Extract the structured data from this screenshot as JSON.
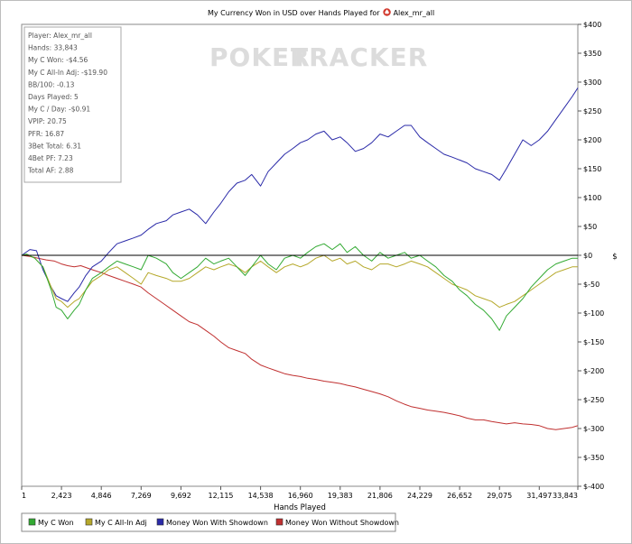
{
  "chart_data": {
    "type": "line",
    "title": "My Currency Won in USD over Hands Played for",
    "player": "Alex_mr_all",
    "xlabel": "Hands Played",
    "ylabel": "$",
    "watermark": {
      "left": "POKER",
      "right": "TRACKER"
    },
    "xlim": [
      1,
      33843
    ],
    "ylim": [
      -400,
      400
    ],
    "x_ticks": [
      1,
      2423,
      4846,
      7269,
      9692,
      12115,
      14538,
      16960,
      19383,
      21806,
      24229,
      26652,
      29075,
      31497,
      33843
    ],
    "x_tick_labels": [
      "1",
      "2,423",
      "4,846",
      "7,269",
      "9,692",
      "12,115",
      "14,538",
      "16,960",
      "19,383",
      "21,806",
      "24,229",
      "26,652",
      "29,075",
      "31,497",
      "33,843"
    ],
    "y_ticks": [
      400,
      350,
      300,
      250,
      200,
      150,
      100,
      50,
      0,
      -50,
      -100,
      -150,
      -200,
      -250,
      -300,
      -350,
      -400
    ],
    "y_tick_labels": [
      "$400",
      "$350",
      "$300",
      "$250",
      "$200",
      "$150",
      "$100",
      "$50",
      "$0",
      "$-50",
      "$-100",
      "$-150",
      "$-200",
      "$-250",
      "$-300",
      "$-350",
      "$-400"
    ],
    "stats": [
      "Player: Alex_mr_all",
      "Hands: 33,843",
      "My C Won: -$4.56",
      "My C All-In Adj: -$19.90",
      "BB/100: -0.13",
      "Days Played: 5",
      "My C / Day: -$0.91",
      "VPIP: 20.75",
      "PFR: 16.87",
      "3Bet Total: 6.31",
      "4Bet PF: 7.23",
      "Total AF: 2.88"
    ],
    "legend_position": "bottom-left",
    "series": [
      {
        "name": "My C Won",
        "color": "#33aa33",
        "x": [
          1,
          300,
          800,
          1300,
          1800,
          2100,
          2423,
          2800,
          3200,
          3500,
          3900,
          4300,
          4846,
          5300,
          5800,
          6300,
          6800,
          7269,
          7700,
          8200,
          8800,
          9200,
          9692,
          10200,
          10700,
          11200,
          11700,
          12115,
          12600,
          13100,
          13600,
          14000,
          14538,
          15000,
          15500,
          16000,
          16500,
          16960,
          17400,
          17900,
          18400,
          18900,
          19383,
          19800,
          20300,
          20800,
          21300,
          21806,
          22300,
          22800,
          23300,
          23700,
          24229,
          24700,
          25200,
          25700,
          26200,
          26652,
          27100,
          27600,
          28100,
          28600,
          29075,
          29500,
          30000,
          30500,
          31000,
          31497,
          32000,
          32500,
          33000,
          33500,
          33843
        ],
        "y": [
          0,
          2,
          -5,
          -20,
          -60,
          -90,
          -95,
          -110,
          -95,
          -85,
          -60,
          -40,
          -30,
          -20,
          -10,
          -15,
          -20,
          -25,
          0,
          -5,
          -15,
          -30,
          -40,
          -30,
          -20,
          -5,
          -15,
          -10,
          -5,
          -20,
          -35,
          -20,
          0,
          -15,
          -25,
          -5,
          0,
          -5,
          5,
          15,
          20,
          10,
          20,
          5,
          15,
          0,
          -10,
          5,
          -5,
          0,
          5,
          -5,
          0,
          -10,
          -20,
          -35,
          -45,
          -60,
          -70,
          -85,
          -95,
          -110,
          -130,
          -105,
          -90,
          -75,
          -55,
          -40,
          -25,
          -15,
          -10,
          -5,
          -5
        ]
      },
      {
        "name": "My C All-In Adj",
        "color": "#b5a82a",
        "x": [
          1,
          300,
          800,
          1300,
          1800,
          2100,
          2423,
          2800,
          3200,
          3500,
          3900,
          4300,
          4846,
          5300,
          5800,
          6300,
          6800,
          7269,
          7700,
          8200,
          8800,
          9200,
          9692,
          10200,
          10700,
          11200,
          11700,
          12115,
          12600,
          13100,
          13600,
          14000,
          14538,
          15000,
          15500,
          16000,
          16500,
          16960,
          17400,
          17900,
          18400,
          18900,
          19383,
          19800,
          20300,
          20800,
          21300,
          21806,
          22300,
          22800,
          23300,
          23700,
          24229,
          24700,
          25200,
          25700,
          26200,
          26652,
          27100,
          27600,
          28100,
          28600,
          29075,
          29500,
          30000,
          30500,
          31000,
          31497,
          32000,
          32500,
          33000,
          33500,
          33843
        ],
        "y": [
          0,
          2,
          -5,
          -20,
          -55,
          -75,
          -80,
          -90,
          -80,
          -75,
          -60,
          -45,
          -35,
          -25,
          -20,
          -30,
          -40,
          -50,
          -30,
          -35,
          -40,
          -45,
          -45,
          -40,
          -30,
          -20,
          -25,
          -20,
          -15,
          -20,
          -30,
          -20,
          -10,
          -20,
          -30,
          -20,
          -15,
          -20,
          -15,
          -5,
          0,
          -10,
          -5,
          -15,
          -10,
          -20,
          -25,
          -15,
          -15,
          -20,
          -15,
          -10,
          -15,
          -20,
          -30,
          -40,
          -50,
          -55,
          -60,
          -70,
          -75,
          -80,
          -90,
          -85,
          -80,
          -70,
          -60,
          -50,
          -40,
          -30,
          -25,
          -20,
          -20
        ]
      },
      {
        "name": "Money Won With Showdown",
        "color": "#2a2aa8",
        "x": [
          1,
          500,
          900,
          1300,
          1800,
          2100,
          2423,
          2800,
          3200,
          3500,
          3900,
          4300,
          4846,
          5300,
          5800,
          6300,
          6800,
          7269,
          7700,
          8200,
          8800,
          9200,
          9692,
          10200,
          10700,
          11200,
          11700,
          12115,
          12600,
          13100,
          13600,
          14000,
          14538,
          15000,
          15500,
          16000,
          16500,
          16960,
          17400,
          17900,
          18400,
          18900,
          19383,
          19800,
          20300,
          20800,
          21300,
          21806,
          22300,
          22800,
          23300,
          23700,
          24229,
          24700,
          25200,
          25700,
          26200,
          26652,
          27100,
          27600,
          28100,
          28600,
          29075,
          29500,
          30000,
          30500,
          31000,
          31497,
          32000,
          32500,
          33000,
          33500,
          33843
        ],
        "y": [
          0,
          10,
          8,
          -25,
          -55,
          -70,
          -75,
          -80,
          -65,
          -55,
          -35,
          -20,
          -10,
          5,
          20,
          25,
          30,
          35,
          45,
          55,
          60,
          70,
          75,
          80,
          70,
          55,
          75,
          90,
          110,
          125,
          130,
          140,
          120,
          145,
          160,
          175,
          185,
          195,
          200,
          210,
          215,
          200,
          205,
          195,
          180,
          185,
          195,
          210,
          205,
          215,
          225,
          225,
          205,
          195,
          185,
          175,
          170,
          165,
          160,
          150,
          145,
          140,
          130,
          150,
          175,
          200,
          190,
          200,
          215,
          235,
          255,
          275,
          290
        ]
      },
      {
        "name": "Money Won Without Showdown",
        "color": "#c03030",
        "x": [
          1,
          500,
          1000,
          1500,
          2000,
          2423,
          2800,
          3200,
          3600,
          4000,
          4400,
          4846,
          5300,
          5800,
          6300,
          6800,
          7269,
          7700,
          8200,
          8700,
          9200,
          9692,
          10200,
          10700,
          11200,
          11700,
          12115,
          12600,
          13100,
          13600,
          14000,
          14538,
          15000,
          15500,
          16000,
          16500,
          16960,
          17400,
          17900,
          18400,
          18900,
          19383,
          19800,
          20300,
          20800,
          21300,
          21806,
          22300,
          22800,
          23300,
          23700,
          24229,
          24700,
          25200,
          25700,
          26200,
          26652,
          27100,
          27600,
          28100,
          28600,
          29075,
          29500,
          30000,
          30500,
          31000,
          31497,
          32000,
          32500,
          33000,
          33500,
          33843
        ],
        "y": [
          0,
          -2,
          -5,
          -8,
          -10,
          -15,
          -18,
          -20,
          -18,
          -22,
          -26,
          -30,
          -35,
          -40,
          -45,
          -50,
          -55,
          -65,
          -75,
          -85,
          -95,
          -105,
          -115,
          -120,
          -130,
          -140,
          -150,
          -160,
          -165,
          -170,
          -180,
          -190,
          -195,
          -200,
          -205,
          -208,
          -210,
          -213,
          -215,
          -218,
          -220,
          -222,
          -225,
          -228,
          -232,
          -236,
          -240,
          -245,
          -252,
          -258,
          -262,
          -265,
          -268,
          -270,
          -272,
          -275,
          -278,
          -282,
          -285,
          -285,
          -288,
          -290,
          -292,
          -290,
          -292,
          -293,
          -295,
          -300,
          -302,
          -300,
          -298,
          -295
        ]
      }
    ]
  }
}
